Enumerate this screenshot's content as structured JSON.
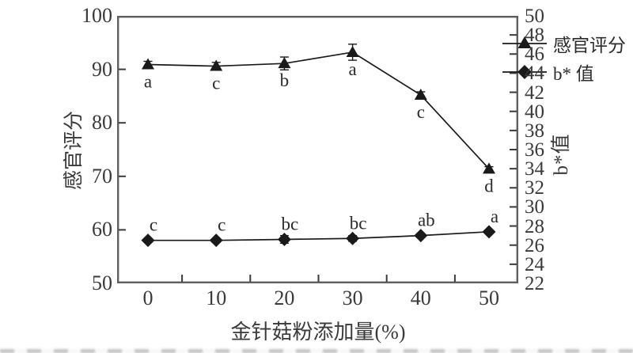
{
  "chart_data": {
    "type": "line",
    "x": [
      0,
      10,
      20,
      30,
      40,
      50
    ],
    "x_tick_labels": [
      "0",
      "10",
      "20",
      "30",
      "40",
      "50"
    ],
    "x_minor_ticks": [
      5,
      15,
      25,
      35,
      45
    ],
    "xlabel": "金针菇粉添加量(%)",
    "left_axis": {
      "label": "感官评分",
      "range": [
        50,
        100
      ],
      "ticks": [
        100,
        90,
        80,
        70,
        60,
        50
      ]
    },
    "right_axis": {
      "label": "b*值",
      "range": [
        22,
        50
      ],
      "ticks": [
        50,
        48,
        46,
        44,
        42,
        40,
        38,
        36,
        34,
        32,
        30,
        28,
        26,
        24,
        22
      ]
    },
    "series": [
      {
        "name": "感官评分",
        "axis": "left",
        "marker": "triangle",
        "values": [
          90.9,
          90.6,
          91.1,
          93.2,
          85.2,
          71.4
        ],
        "errors": [
          0.6,
          0.7,
          1.2,
          1.5,
          0.6,
          0.4
        ],
        "point_labels": [
          "a",
          "c",
          "b",
          "a",
          "c",
          "d"
        ],
        "label_side": "below"
      },
      {
        "name": "b* 值",
        "axis": "right",
        "marker": "diamond",
        "values": [
          26.5,
          26.5,
          26.6,
          26.7,
          27.0,
          27.4
        ],
        "errors": [
          0.2,
          0.2,
          0.4,
          0.3,
          0.2,
          0.2
        ],
        "point_labels": [
          "c",
          "c",
          "bc",
          "bc",
          "ab",
          "a"
        ],
        "label_side": "above"
      }
    ],
    "legend_position": "top-right",
    "grid": false,
    "colors": {
      "series": "#1a1a1a",
      "frame": "#5f5f5f",
      "text": "#2b2b2b"
    }
  }
}
